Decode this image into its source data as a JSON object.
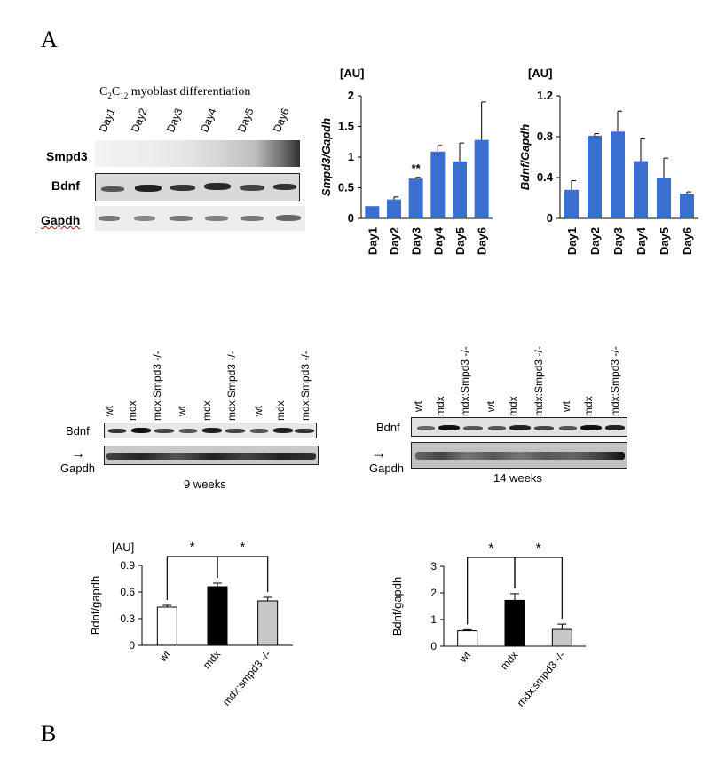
{
  "panel_a_label": "A",
  "panel_b_label": "B",
  "blot_a": {
    "title": "C2C12 myoblast differentiation",
    "title_prefix": "C",
    "title_sub1": "2",
    "title_mid": "C",
    "title_sub2": "12",
    "title_suffix": " myoblast differentiation",
    "lanes": [
      "Day1",
      "Day2",
      "Day3",
      "Day4",
      "Day5",
      "Day6"
    ],
    "rows": [
      "Smpd3",
      "Bdnf",
      "Gapdh"
    ]
  },
  "blot_b9": {
    "lanes": [
      "wt",
      "mdx",
      "mdx:Smpd3 -/-",
      "wt",
      "mdx",
      "mdx:Smpd3 -/-",
      "wt",
      "mdx",
      "mdx:Smpd3 -/-"
    ],
    "row_top": "Bdnf",
    "row_bottom": "Gapdh",
    "caption": "9 weeks"
  },
  "blot_b14": {
    "lanes": [
      "wt",
      "mdx",
      "mdx:Smpd3 -/-",
      "wt",
      "mdx",
      "mdx:Smpd3 -/-",
      "wt",
      "mdx",
      "mdx:Smpd3 -/-"
    ],
    "row_top": "Bdnf",
    "row_bottom": "Gapdh",
    "caption": "14 weeks"
  },
  "colors": {
    "bar_blue": "#3a6fd0",
    "black_bar": "#000000",
    "gray_bar": "#c8c8c8",
    "white_bar": "#ffffff"
  },
  "chart_data": [
    {
      "type": "bar",
      "unit_label": "[AU]",
      "ylabel": "Smpd3/Gapdh",
      "categories": [
        "Day1",
        "Day2",
        "Day3",
        "Day4",
        "Day5",
        "Day6"
      ],
      "values": [
        0.2,
        0.31,
        0.65,
        1.09,
        0.93,
        1.28
      ],
      "errors": [
        0.0,
        0.04,
        0.02,
        0.1,
        0.3,
        0.62
      ],
      "annotations": [
        {
          "category": "Day3",
          "text": "**"
        }
      ],
      "ylim": [
        0,
        2
      ],
      "yticks": [
        "0",
        "0.5",
        "1",
        "1.5",
        "2"
      ]
    },
    {
      "type": "bar",
      "unit_label": "[AU]",
      "ylabel": "Bdnf/Gapdh",
      "categories": [
        "Day1",
        "Day2",
        "Day3",
        "Day4",
        "Day5",
        "Day6"
      ],
      "values": [
        0.28,
        0.81,
        0.85,
        0.56,
        0.4,
        0.24
      ],
      "errors": [
        0.09,
        0.02,
        0.2,
        0.22,
        0.19,
        0.02
      ],
      "ylim": [
        0,
        1.2
      ],
      "yticks": [
        "0",
        "0.4",
        "0.8",
        "1.2"
      ]
    },
    {
      "type": "bar",
      "unit_label": "[AU]",
      "ylabel": "Bdnf/gapdh",
      "categories": [
        "wt",
        "mdx",
        "mdx:smpd3 -/-"
      ],
      "values": [
        0.43,
        0.66,
        0.5
      ],
      "errors": [
        0.02,
        0.04,
        0.04
      ],
      "significance": [
        "*",
        "*"
      ],
      "ylim": [
        0,
        0.9
      ],
      "yticks": [
        "0",
        "0.3",
        "0.6",
        "0.9"
      ]
    },
    {
      "type": "bar",
      "ylabel": "Bdnf/gapdh",
      "categories": [
        "wt",
        "mdx",
        "mdx:smpd3 -/-"
      ],
      "values": [
        0.58,
        1.72,
        0.63
      ],
      "errors": [
        0.04,
        0.25,
        0.2
      ],
      "significance": [
        "*",
        "*"
      ],
      "ylim": [
        0,
        3
      ],
      "yticks": [
        "0",
        "1",
        "2",
        "3"
      ]
    }
  ]
}
